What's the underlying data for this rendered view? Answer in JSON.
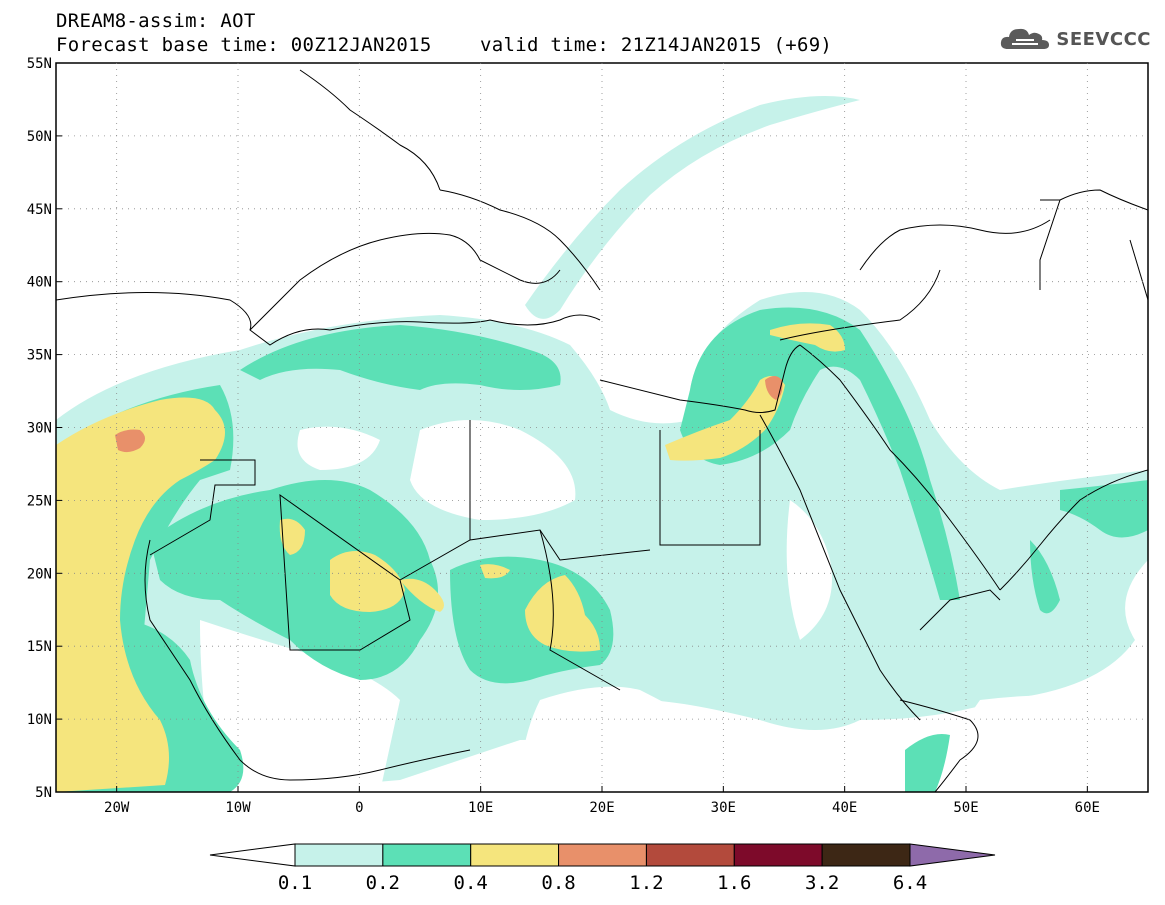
{
  "header": {
    "title_line1": "DREAM8-assim: AOT",
    "title_line2": "Forecast base time: 00Z12JAN2015",
    "valid_time": "valid time: 21Z14JAN2015 (+69)",
    "logo_text": "SEEVCCC",
    "logo_icon": "cloud-icon"
  },
  "map": {
    "lat_labels": [
      "55N",
      "50N",
      "45N",
      "40N",
      "35N",
      "30N",
      "25N",
      "20N",
      "15N",
      "10N",
      "5N"
    ],
    "lon_labels": [
      "20W",
      "10W",
      "0",
      "10E",
      "20E",
      "30E",
      "40E",
      "50E",
      "60E"
    ],
    "lat_range": [
      5,
      55
    ],
    "lon_range": [
      -25,
      65
    ],
    "grid": "dotted"
  },
  "colorbar": {
    "levels": [
      "0.1",
      "0.2",
      "0.4",
      "0.8",
      "1.2",
      "1.6",
      "3.2",
      "6.4"
    ],
    "colors": [
      "#ffffff",
      "#c6f2ea",
      "#5ce0b6",
      "#f5e57d",
      "#e8906a",
      "#b34a3c",
      "#7d0a2a",
      "#3d2715",
      "#8e6aaa"
    ]
  }
}
